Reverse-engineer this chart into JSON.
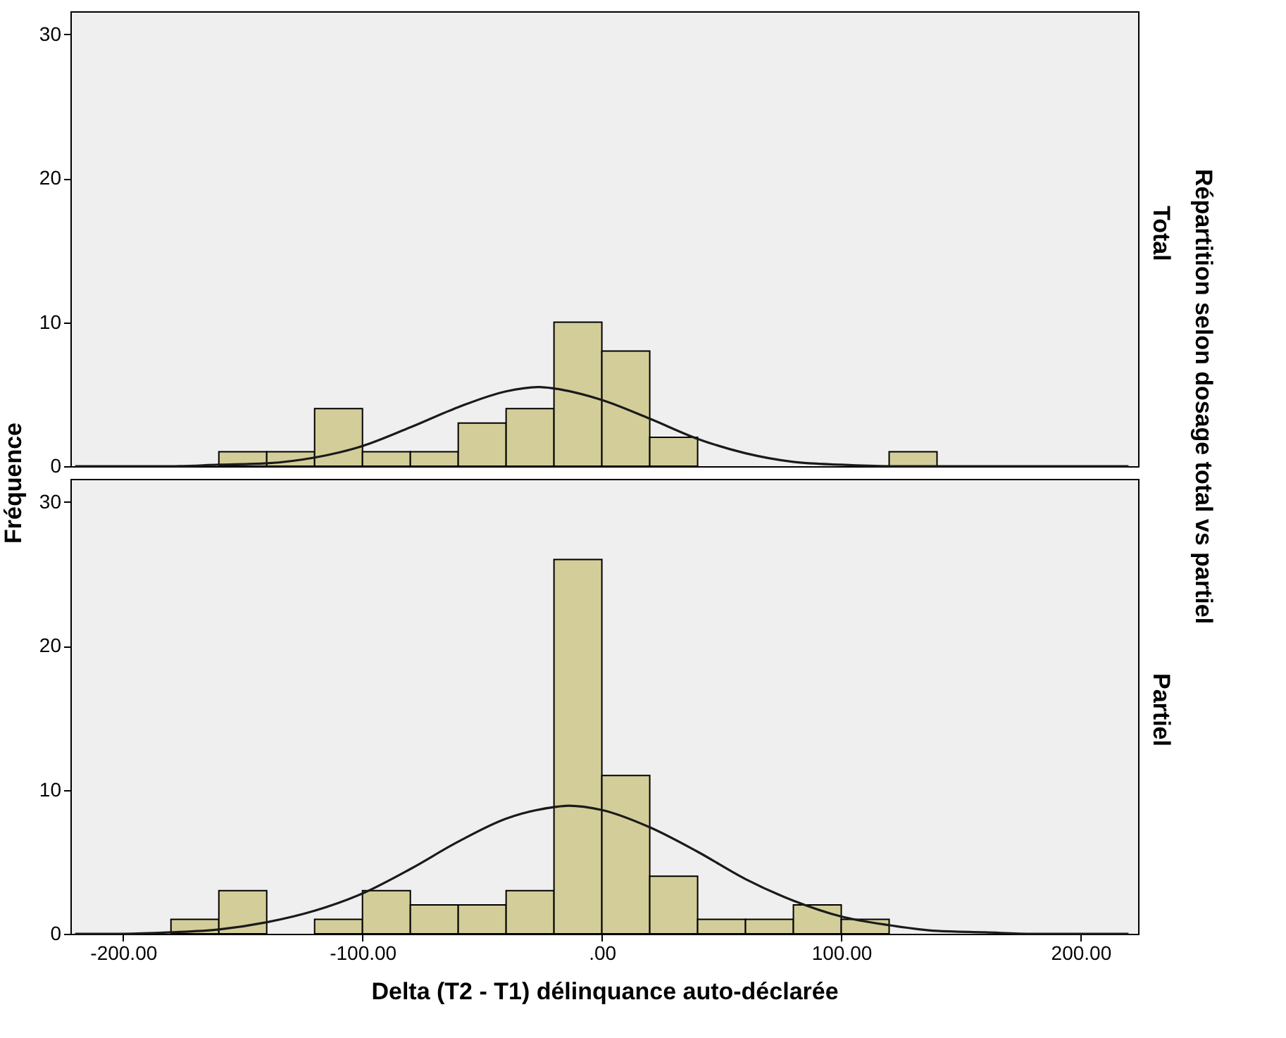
{
  "chart_data": [
    {
      "type": "histogram",
      "title": "Total",
      "ylabel": "Fréquence",
      "annotations": [
        "Répartition selon dosage total vs partiel"
      ],
      "xlim": [
        -222,
        224
      ],
      "ylim": [
        0,
        31.6
      ],
      "yticks": [
        0,
        10,
        20,
        30
      ],
      "tick_labels": "y",
      "series": [
        {
          "color": "#d3ce99",
          "bins": [
            -160,
            -140,
            -120,
            -100,
            -80,
            -60,
            -40,
            -20,
            0,
            20,
            40,
            60,
            80,
            100,
            120,
            140
          ],
          "values": [
            1,
            1,
            4,
            1,
            1,
            3,
            4,
            10,
            8,
            2,
            0,
            0,
            0,
            0,
            1
          ]
        },
        {
          "type": "line",
          "color": "#1a1a1a",
          "line_style": "solid",
          "x": [
            -220,
            -200,
            -180,
            -160,
            -140,
            -120,
            -100,
            -80,
            -60,
            -40,
            -26,
            -20,
            0,
            20,
            40,
            60,
            80,
            100,
            120,
            140,
            160,
            180,
            200,
            220
          ],
          "values": [
            0,
            0,
            0,
            0.1,
            0.2,
            0.6,
            1.4,
            2.7,
            4.1,
            5.2,
            5.5,
            5.4,
            4.6,
            3.3,
            1.9,
            0.9,
            0.3,
            0.1,
            0,
            0,
            0,
            0,
            0,
            0
          ]
        }
      ]
    },
    {
      "type": "histogram",
      "title": "Partiel",
      "xlabel": "Delta (T2 - T1) délinquance auto-déclarée",
      "xlim": [
        -222,
        224
      ],
      "xticks": [
        {
          "value": -200,
          "label": "-200.00"
        },
        {
          "value": -100,
          "label": "-100.00"
        },
        {
          "value": 0,
          "label": ".00"
        },
        {
          "value": 100,
          "label": "100.00"
        },
        {
          "value": 200,
          "label": "200.00"
        }
      ],
      "ylim": [
        0,
        31.6
      ],
      "yticks": [
        0,
        10,
        20,
        30
      ],
      "series": [
        {
          "color": "#d3ce99",
          "bins": [
            -180,
            -160,
            -140,
            -120,
            -100,
            -80,
            -60,
            -40,
            -20,
            0,
            20,
            40,
            60,
            80,
            100,
            120
          ],
          "values": [
            1,
            3,
            0,
            1,
            3,
            2,
            2,
            3,
            26,
            11,
            4,
            1,
            1,
            2,
            1
          ]
        },
        {
          "type": "line",
          "color": "#1a1a1a",
          "line_style": "solid",
          "x": [
            -220,
            -200,
            -180,
            -160,
            -140,
            -120,
            -100,
            -80,
            -60,
            -40,
            -20,
            -14,
            0,
            20,
            40,
            60,
            80,
            100,
            120,
            140,
            160,
            180,
            200,
            220
          ],
          "values": [
            0,
            0,
            0.1,
            0.3,
            0.8,
            1.6,
            2.8,
            4.5,
            6.4,
            8.0,
            8.8,
            8.9,
            8.6,
            7.4,
            5.7,
            3.8,
            2.3,
            1.2,
            0.6,
            0.2,
            0.1,
            0,
            0,
            0
          ]
        }
      ]
    }
  ]
}
